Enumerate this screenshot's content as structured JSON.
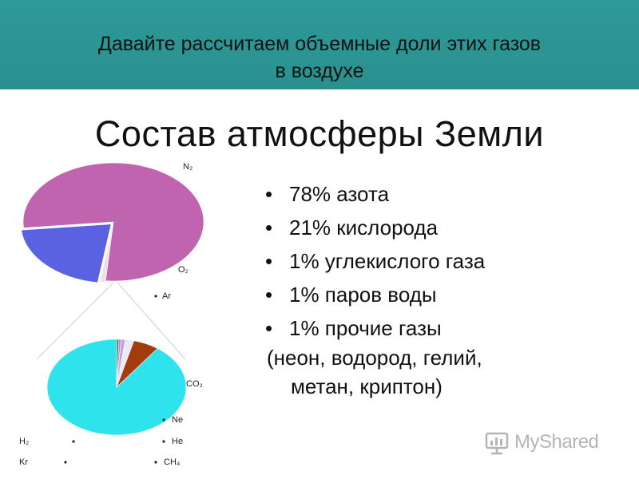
{
  "header": {
    "line1": "Давайте рассчитаем объемные доли этих газов",
    "line2": "в воздухе",
    "bg_color": "#2e9a98"
  },
  "slide_title": "Состав атмосферы Земли",
  "bullets": [
    "78% азота",
    "21% кислорода",
    "1% углекислого газа",
    "1% паров воды",
    "1% прочие газы"
  ],
  "bullet_symbol": "•",
  "note": {
    "line1": "(неон, водород, гелий,",
    "line2": "метан, криптон)"
  },
  "watermark": {
    "text": "MyShared",
    "icon": "myshared-logo-icon"
  },
  "chart_data": [
    {
      "type": "pie",
      "title": "",
      "slices": [
        {
          "label": "N₂",
          "value": 78,
          "color": "#c064b0"
        },
        {
          "label": "O₂",
          "value": 21,
          "color": "#5b62e2"
        },
        {
          "label": "Ar",
          "value": 1,
          "color": "#f1ddf0"
        }
      ]
    },
    {
      "type": "pie",
      "title": "",
      "slices": [
        {
          "label": "CO₂",
          "value": 90,
          "color": "#2fe3ec"
        },
        {
          "label": "Ne",
          "value": 6,
          "color": "#a23c0c"
        },
        {
          "label": "He",
          "value": 2,
          "color": "#ece8f4"
        },
        {
          "label": "CH₄",
          "value": 1,
          "color": "#c8a2e4"
        },
        {
          "label": "Kr",
          "value": 0.5,
          "color": "#999999"
        },
        {
          "label": "H₂",
          "value": 0.5,
          "color": "#666666"
        }
      ]
    }
  ]
}
